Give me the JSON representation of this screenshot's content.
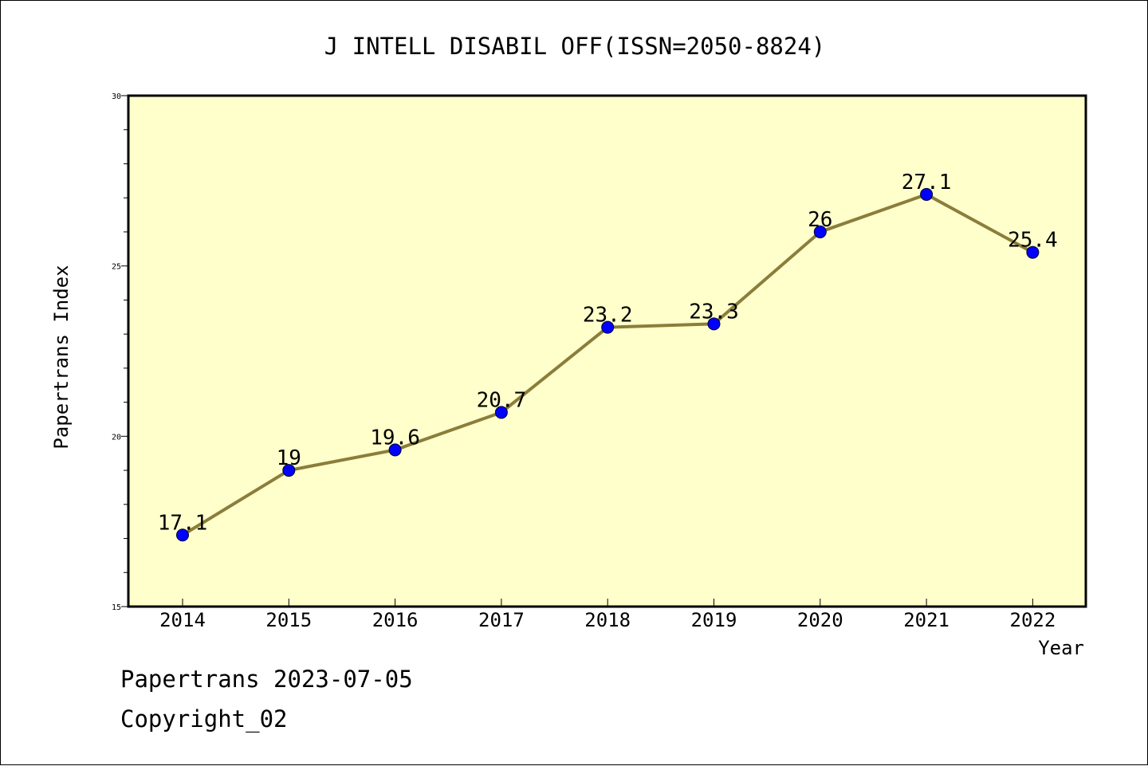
{
  "chart_data": {
    "type": "line",
    "title": "J INTELL DISABIL OFF(ISSN=2050-8824)",
    "xlabel": "Year",
    "ylabel": "Papertrans Index",
    "categories": [
      "2014",
      "2015",
      "2016",
      "2017",
      "2018",
      "2019",
      "2020",
      "2021",
      "2022"
    ],
    "values": [
      17.1,
      19,
      19.6,
      20.7,
      23.2,
      23.3,
      26,
      27.1,
      25.4
    ],
    "data_labels": [
      "17.1",
      "19",
      "19.6",
      "20.7",
      "23.2",
      "23.3",
      "26",
      "27.1",
      "25.4"
    ],
    "ylim": [
      15,
      30
    ],
    "yticks": [
      15,
      20,
      25,
      30
    ],
    "grid": false,
    "legend": "none",
    "colors": {
      "plot_background": "#ffffcc",
      "line": "#8b7d3a",
      "marker": "#0000ff"
    }
  },
  "footer": {
    "line1": "Papertrans 2023-07-05",
    "line2": "Copyright_02"
  }
}
